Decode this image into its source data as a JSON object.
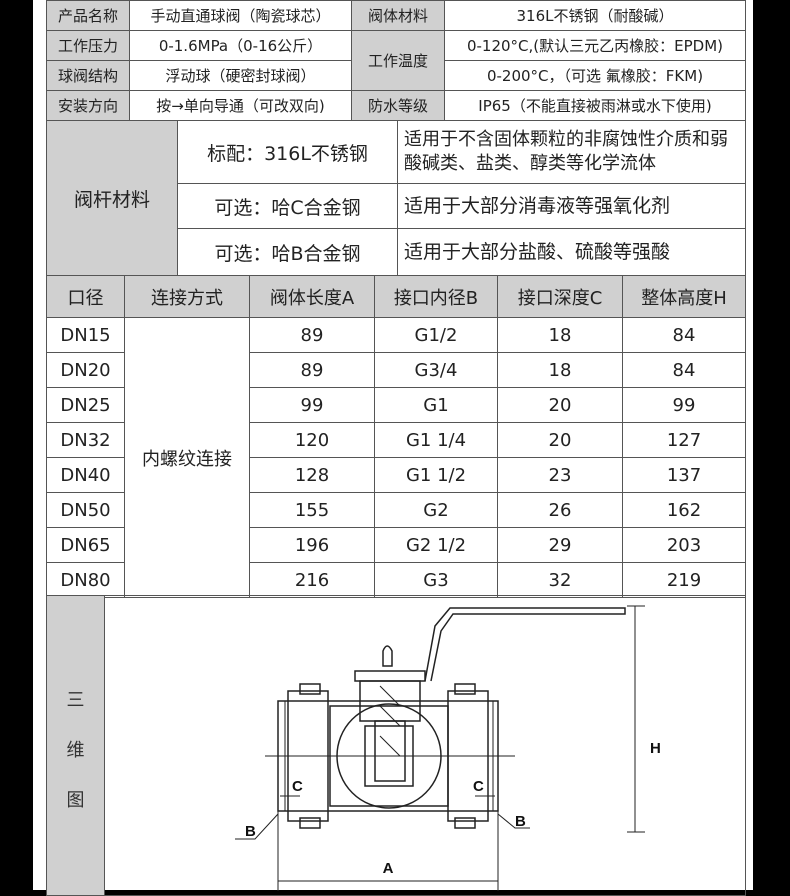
{
  "specs": {
    "rows": [
      {
        "l1": "产品名称",
        "v1": "手动直通球阀（陶瓷球芯）",
        "l2": "阀体材料",
        "v2": "316L不锈钢（耐酸碱）"
      },
      {
        "l1": "工作压力",
        "v1": "0-1.6MPa（0-16公斤）",
        "l2": "工作温度",
        "v2": "0-120°C,(默认三元乙丙橡胶：EPDM)"
      },
      {
        "l1": "球阀结构",
        "v1": "浮动球（硬密封球阀）",
        "v2": "0-200°C，（可选 氟橡胶：FKM)"
      },
      {
        "l1": "安装方向",
        "v1": "按→单向导通（可改双向)",
        "l2": "防水等级",
        "v2": "IP65（不能直接被雨淋或水下使用)"
      }
    ]
  },
  "stem": {
    "label": "阀杆材料",
    "options": [
      {
        "material": "标配：316L不锈钢",
        "desc": "适用于不含固体颗粒的非腐蚀性介质和弱酸碱类、盐类、醇类等化学流体"
      },
      {
        "material": "可选：哈C合金钢",
        "desc": "适用于大部分消毒液等强氧化剂"
      },
      {
        "material": "可选：哈B合金钢",
        "desc": "适用于大部分盐酸、硫酸等强酸"
      }
    ]
  },
  "dimensions": {
    "headers": [
      "口径",
      "连接方式",
      "阀体长度A",
      "接口内径B",
      "接口深度C",
      "整体高度H"
    ],
    "connection": "内螺纹连接",
    "rows": [
      [
        "DN15",
        "89",
        "G1/2",
        "18",
        "84"
      ],
      [
        "DN20",
        "89",
        "G3/4",
        "18",
        "84"
      ],
      [
        "DN25",
        "99",
        "G1",
        "20",
        "99"
      ],
      [
        "DN32",
        "120",
        "G1 1/4",
        "20",
        "127"
      ],
      [
        "DN40",
        "128",
        "G1 1/2",
        "23",
        "137"
      ],
      [
        "DN50",
        "155",
        "G2",
        "26",
        "162"
      ],
      [
        "DN65",
        "196",
        "G2 1/2",
        "29",
        "203"
      ],
      [
        "DN80",
        "216",
        "G3",
        "32",
        "219"
      ]
    ]
  },
  "drawing": {
    "label": [
      "三",
      "维",
      "图"
    ],
    "dims": {
      "A": "A",
      "B": "B",
      "C": "C",
      "H": "H"
    }
  }
}
